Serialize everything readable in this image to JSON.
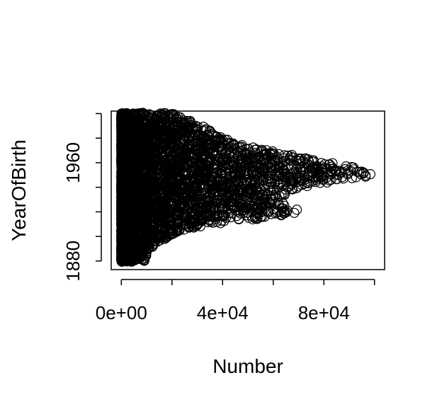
{
  "chart_data": {
    "type": "scatter",
    "title": "",
    "xlabel": "Number",
    "ylabel": "YearOfBirth",
    "xlim": [
      -4000,
      104000
    ],
    "ylim": [
      1873,
      2002
    ],
    "x_ticks": [
      0,
      20000,
      40000,
      60000,
      80000,
      100000
    ],
    "x_tick_labels": [
      "0e+00",
      "",
      "4e+04",
      "",
      "8e+04",
      ""
    ],
    "y_ticks": [
      1880,
      1900,
      1920,
      1940,
      1960,
      1980,
      2000
    ],
    "y_tick_labels": [
      "1880",
      "",
      "",
      "",
      "1960",
      "",
      ""
    ],
    "grid": false,
    "marker": "open-circle",
    "marker_color": "#000000",
    "points": [
      {
        "year": 1880,
        "max": 10000
      },
      {
        "year": 1885,
        "max": 10500
      },
      {
        "year": 1890,
        "max": 11500
      },
      {
        "year": 1895,
        "max": 14000
      },
      {
        "year": 1900,
        "max": 19000
      },
      {
        "year": 1905,
        "max": 24000
      },
      {
        "year": 1910,
        "max": 34000
      },
      {
        "year": 1915,
        "max": 56000
      },
      {
        "year": 1920,
        "max": 73000
      },
      {
        "year": 1925,
        "max": 66000
      },
      {
        "year": 1930,
        "max": 60000
      },
      {
        "year": 1935,
        "max": 66000
      },
      {
        "year": 1940,
        "max": 72000
      },
      {
        "year": 1945,
        "max": 85000
      },
      {
        "year": 1950,
        "max": 100000
      },
      {
        "year": 1955,
        "max": 94000
      },
      {
        "year": 1960,
        "max": 85000
      },
      {
        "year": 1965,
        "max": 70000
      },
      {
        "year": 1970,
        "max": 58000
      },
      {
        "year": 1975,
        "max": 46000
      },
      {
        "year": 1980,
        "max": 40000
      },
      {
        "year": 1985,
        "max": 36000
      },
      {
        "year": 1990,
        "max": 32000
      },
      {
        "year": 1995,
        "max": 26000
      },
      {
        "year": 2000,
        "max": 22000
      }
    ]
  }
}
